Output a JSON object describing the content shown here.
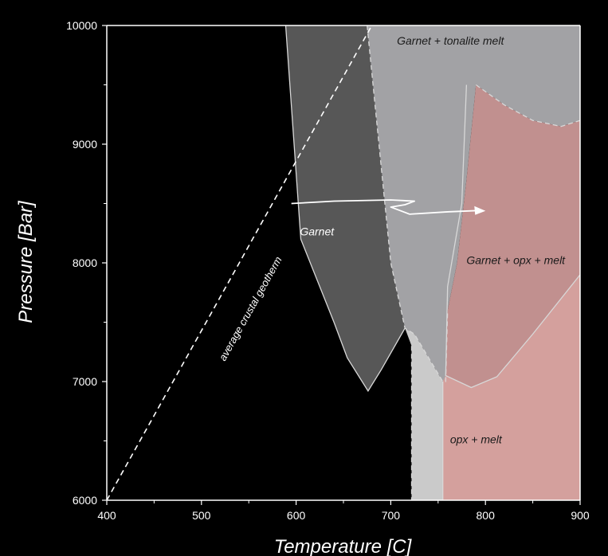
{
  "chart_data": {
    "type": "phase-diagram",
    "xlabel": "Temperature [C]",
    "ylabel": "Pressure [Bar]",
    "xlim": [
      400,
      900
    ],
    "ylim": [
      6000,
      10000
    ],
    "x_ticks": [
      "400",
      "500",
      "600",
      "700",
      "800",
      "900"
    ],
    "y_ticks": [
      "6000",
      "7000",
      "8000",
      "9000",
      "10000"
    ],
    "colors": {
      "background": "#000000",
      "garnet": "#575757",
      "garnet_tonalite": "#a2a2a5",
      "transition_strip": "#cacaca",
      "garnet_opx_melt": "#c1908f",
      "opx_melt": "#d4a09d",
      "boundary": "#d8d8d8",
      "text": "#ffffff"
    },
    "regions": [
      {
        "label": "Garnet",
        "label_at": [
          622,
          8230
        ],
        "color_key": "garnet",
        "points": [
          [
            589,
            10000
          ],
          [
            675,
            10000
          ],
          [
            690,
            8800
          ],
          [
            700,
            8000
          ],
          [
            715,
            7450
          ],
          [
            690,
            7100
          ],
          [
            676,
            6920
          ],
          [
            654,
            7200
          ],
          [
            640,
            7500
          ],
          [
            605,
            8200
          ]
        ]
      },
      {
        "label": "Garnet + tonalite melt",
        "label_at": [
          763,
          9840
        ],
        "color_key": "garnet_tonalite",
        "points": [
          [
            675,
            10000
          ],
          [
            900,
            10000
          ],
          [
            900,
            9200
          ],
          [
            880,
            9150
          ],
          [
            850,
            9200
          ],
          [
            820,
            9330
          ],
          [
            790,
            9500
          ],
          [
            780,
            8700
          ],
          [
            770,
            8000
          ],
          [
            760,
            7600
          ],
          [
            758,
            7000
          ],
          [
            755,
            7000
          ],
          [
            725,
            7400
          ],
          [
            715,
            7450
          ],
          [
            700,
            8000
          ],
          [
            690,
            8800
          ]
        ]
      },
      {
        "label": "",
        "color_key": "transition_strip",
        "points": [
          [
            715,
            7450
          ],
          [
            725,
            7400
          ],
          [
            755,
            7000
          ],
          [
            755,
            6000
          ],
          [
            722,
            6000
          ],
          [
            722,
            7300
          ]
        ]
      },
      {
        "label": "Garnet + opx + melt",
        "label_at": [
          832,
          7990
        ],
        "color_key": "garnet_opx_melt",
        "points": [
          [
            790,
            9500
          ],
          [
            820,
            9330
          ],
          [
            850,
            9200
          ],
          [
            880,
            9150
          ],
          [
            900,
            9200
          ],
          [
            900,
            7900
          ],
          [
            850,
            7400
          ],
          [
            812,
            7040
          ],
          [
            785,
            6950
          ],
          [
            758,
            7050
          ],
          [
            760,
            7600
          ],
          [
            770,
            8000
          ],
          [
            780,
            8700
          ]
        ]
      },
      {
        "label": "opx + melt",
        "label_at": [
          790,
          6480
        ],
        "color_key": "opx_melt",
        "points": [
          [
            755,
            7000
          ],
          [
            758,
            7050
          ],
          [
            785,
            6950
          ],
          [
            812,
            7040
          ],
          [
            850,
            7400
          ],
          [
            900,
            7900
          ],
          [
            900,
            6000
          ],
          [
            755,
            6000
          ]
        ]
      }
    ],
    "boundaries": [
      {
        "style": "solid",
        "points": [
          [
            589,
            10000
          ],
          [
            605,
            8200
          ],
          [
            640,
            7500
          ],
          [
            654,
            7200
          ],
          [
            676,
            6920
          ],
          [
            690,
            7100
          ],
          [
            715,
            7450
          ]
        ]
      },
      {
        "style": "dashed",
        "points": [
          [
            675,
            10000
          ],
          [
            690,
            8800
          ],
          [
            700,
            8000
          ],
          [
            715,
            7450
          ],
          [
            725,
            7400
          ],
          [
            755,
            7000
          ],
          [
            758,
            7000
          ],
          [
            760,
            7600
          ]
        ]
      },
      {
        "style": "dashed",
        "points": [
          [
            790,
            9500
          ],
          [
            820,
            9330
          ],
          [
            850,
            9200
          ],
          [
            880,
            9150
          ],
          [
            900,
            9200
          ]
        ]
      },
      {
        "style": "dashed",
        "points": [
          [
            722,
            7300
          ],
          [
            722,
            6000
          ]
        ]
      },
      {
        "style": "solid",
        "points": [
          [
            755,
            7000
          ],
          [
            755,
            6000
          ]
        ]
      },
      {
        "style": "solid",
        "points": [
          [
            780,
            9500
          ],
          [
            775,
            8500
          ],
          [
            760,
            7800
          ],
          [
            758,
            7050
          ],
          [
            785,
            6950
          ],
          [
            812,
            7040
          ],
          [
            850,
            7400
          ],
          [
            900,
            7900
          ]
        ]
      }
    ],
    "geotherm": {
      "label": "average crustal geotherm",
      "label_at": [
        555,
        7600
      ],
      "points": [
        [
          400,
          6000
        ],
        [
          680,
          10000
        ]
      ]
    },
    "path_arrow": {
      "points": [
        [
          595,
          8500
        ],
        [
          640,
          8520
        ],
        [
          700,
          8530
        ],
        [
          725,
          8520
        ],
        [
          715,
          8490
        ],
        [
          700,
          8470
        ],
        [
          720,
          8410
        ],
        [
          760,
          8430
        ],
        [
          790,
          8440
        ]
      ],
      "arrow_head_at": [
        795,
        8445
      ]
    }
  }
}
